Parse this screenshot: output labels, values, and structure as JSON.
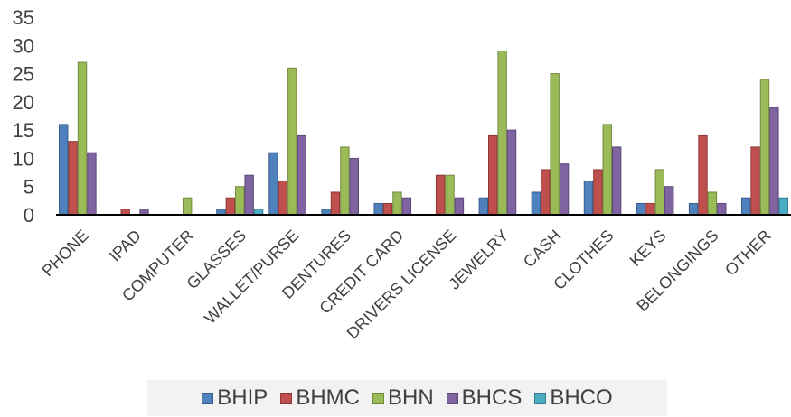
{
  "chart_data": {
    "type": "bar",
    "title": "",
    "xlabel": "",
    "ylabel": "",
    "ylim": [
      0,
      35
    ],
    "yticks": [
      0,
      5,
      10,
      15,
      20,
      25,
      30,
      35
    ],
    "grid": false,
    "legend_position": "bottom",
    "categories": [
      "PHONE",
      "IPAD",
      "COMPUTER",
      "GLASSES",
      "WALLET/PURSE",
      "DENTURES",
      "CREDIT CARD",
      "DRIVERS LICENSE",
      "JEWELRY",
      "CASH",
      "CLOTHES",
      "KEYS",
      "BELONGINGS",
      "OTHER"
    ],
    "series": [
      {
        "name": "BHIP",
        "color": "#4f81bd",
        "stroke": "#385d8a",
        "values": [
          16,
          0,
          0,
          1,
          11,
          1,
          2,
          0,
          3,
          4,
          6,
          2,
          2,
          3
        ]
      },
      {
        "name": "BHMC",
        "color": "#c0504d",
        "stroke": "#8c3836",
        "values": [
          13,
          1,
          0,
          3,
          6,
          4,
          2,
          7,
          14,
          8,
          8,
          2,
          14,
          12
        ]
      },
      {
        "name": "BHN",
        "color": "#9bbb59",
        "stroke": "#71893f",
        "values": [
          27,
          0,
          3,
          5,
          26,
          12,
          4,
          7,
          29,
          25,
          16,
          8,
          4,
          24
        ]
      },
      {
        "name": "BHCS",
        "color": "#8064a2",
        "stroke": "#5c4776",
        "values": [
          11,
          1,
          0,
          7,
          14,
          10,
          3,
          3,
          15,
          9,
          12,
          5,
          2,
          19
        ]
      },
      {
        "name": "BHCO",
        "color": "#4bacc6",
        "stroke": "#357d91",
        "values": [
          0,
          0,
          0,
          1,
          0,
          0,
          0,
          0,
          0,
          0,
          0,
          0,
          0,
          3
        ]
      }
    ]
  }
}
